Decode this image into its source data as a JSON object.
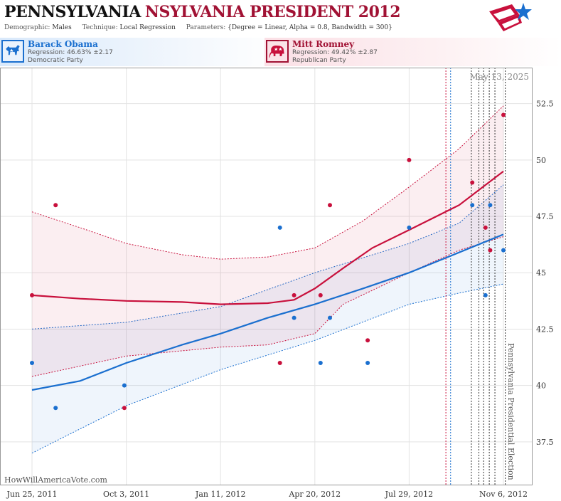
{
  "header": {
    "title_state": "PENNSYLVANIA",
    "title_office": "NSYLVANIA PRESIDENT 2012",
    "demographic_label": "Demographic:",
    "demographic_value": "Males",
    "technique_label": "Technique:",
    "technique_value": "Local Regression",
    "parameters_label": "Parameters:",
    "parameters_value": "{Degree = Linear, Alpha = 0.8, Bandwidth = 300}"
  },
  "candidates": {
    "dem": {
      "name": "Barack Obama",
      "regression": "Regression: 46.63% ±2.17",
      "party": "Democratic Party",
      "icon": "donkey-icon",
      "color": "#1a6fcf"
    },
    "rep": {
      "name": "Mitt Romney",
      "regression": "Regression: 49.42% ±2.87",
      "party": "Republican Party",
      "icon": "elephant-icon",
      "color": "#c8103c"
    }
  },
  "watermark": "HowWillAmericaVote.com",
  "date_stamp": "May 13, 2025",
  "election_label": "Pennsylvania Presidential Election",
  "chart_data": {
    "type": "scatter",
    "x_axis": {
      "type": "date",
      "range": [
        "2011-06-25",
        "2012-11-15"
      ],
      "tick_labels": [
        "Jun 25, 2011",
        "Oct 3, 2011",
        "Jan 11, 2012",
        "Apr 20, 2012",
        "Jul 29, 2012",
        "Nov 6, 2012"
      ],
      "ticks": [
        "2011-06-25",
        "2011-10-03",
        "2012-01-11",
        "2012-04-20",
        "2012-07-29",
        "2012-11-06"
      ]
    },
    "y_axis": {
      "range": [
        35.6,
        54.1
      ],
      "ticks": [
        37.5,
        40,
        42.5,
        45,
        47.5,
        50,
        52.5
      ],
      "tick_labels": [
        "37.5",
        "40",
        "42.5",
        "45",
        "47.5",
        "50",
        "52.5"
      ],
      "position": "right"
    },
    "grid": true,
    "series": [
      {
        "name": "Barack Obama",
        "color": "#1a6fcf",
        "points": [
          {
            "date": "2011-06-25",
            "value": 41
          },
          {
            "date": "2011-07-20",
            "value": 39
          },
          {
            "date": "2011-10-01",
            "value": 40
          },
          {
            "date": "2012-03-14",
            "value": 47
          },
          {
            "date": "2012-03-29",
            "value": 43
          },
          {
            "date": "2012-04-26",
            "value": 41
          },
          {
            "date": "2012-05-06",
            "value": 43
          },
          {
            "date": "2012-06-15",
            "value": 41
          },
          {
            "date": "2012-07-29",
            "value": 47
          },
          {
            "date": "2012-10-04",
            "value": 48
          },
          {
            "date": "2012-10-18",
            "value": 44
          },
          {
            "date": "2012-10-23",
            "value": 48
          },
          {
            "date": "2012-11-06",
            "value": 46
          }
        ],
        "regression": [
          {
            "date": "2011-06-25",
            "value": 39.8
          },
          {
            "date": "2011-08-15",
            "value": 40.2
          },
          {
            "date": "2011-10-03",
            "value": 41.0
          },
          {
            "date": "2011-12-01",
            "value": 41.8
          },
          {
            "date": "2012-01-11",
            "value": 42.3
          },
          {
            "date": "2012-03-01",
            "value": 43.0
          },
          {
            "date": "2012-04-20",
            "value": 43.6
          },
          {
            "date": "2012-06-10",
            "value": 44.3
          },
          {
            "date": "2012-07-29",
            "value": 45.0
          },
          {
            "date": "2012-09-20",
            "value": 45.9
          },
          {
            "date": "2012-11-06",
            "value": 46.7
          }
        ],
        "upper": [
          {
            "date": "2011-06-25",
            "value": 42.5
          },
          {
            "date": "2011-10-03",
            "value": 42.8
          },
          {
            "date": "2012-01-11",
            "value": 43.5
          },
          {
            "date": "2012-04-20",
            "value": 45.0
          },
          {
            "date": "2012-07-29",
            "value": 46.3
          },
          {
            "date": "2012-09-20",
            "value": 47.2
          },
          {
            "date": "2012-11-06",
            "value": 48.9
          }
        ],
        "lower": [
          {
            "date": "2011-06-25",
            "value": 37.0
          },
          {
            "date": "2011-10-03",
            "value": 39.1
          },
          {
            "date": "2012-01-11",
            "value": 40.7
          },
          {
            "date": "2012-04-20",
            "value": 42.0
          },
          {
            "date": "2012-07-29",
            "value": 43.6
          },
          {
            "date": "2012-09-20",
            "value": 44.1
          },
          {
            "date": "2012-11-06",
            "value": 44.5
          }
        ]
      },
      {
        "name": "Mitt Romney",
        "color": "#c8103c",
        "points": [
          {
            "date": "2011-06-25",
            "value": 44
          },
          {
            "date": "2011-07-20",
            "value": 48
          },
          {
            "date": "2011-10-01",
            "value": 39
          },
          {
            "date": "2012-03-14",
            "value": 41
          },
          {
            "date": "2012-03-29",
            "value": 44
          },
          {
            "date": "2012-04-26",
            "value": 44
          },
          {
            "date": "2012-05-06",
            "value": 48
          },
          {
            "date": "2012-06-15",
            "value": 42
          },
          {
            "date": "2012-07-29",
            "value": 50
          },
          {
            "date": "2012-10-04",
            "value": 49
          },
          {
            "date": "2012-10-18",
            "value": 47
          },
          {
            "date": "2012-10-23",
            "value": 46
          },
          {
            "date": "2012-11-06",
            "value": 52
          }
        ],
        "regression": [
          {
            "date": "2011-06-25",
            "value": 44.0
          },
          {
            "date": "2011-08-15",
            "value": 43.85
          },
          {
            "date": "2011-10-03",
            "value": 43.75
          },
          {
            "date": "2011-12-01",
            "value": 43.7
          },
          {
            "date": "2012-01-11",
            "value": 43.6
          },
          {
            "date": "2012-03-01",
            "value": 43.65
          },
          {
            "date": "2012-03-29",
            "value": 43.8
          },
          {
            "date": "2012-04-20",
            "value": 44.3
          },
          {
            "date": "2012-05-20",
            "value": 45.2
          },
          {
            "date": "2012-06-20",
            "value": 46.1
          },
          {
            "date": "2012-07-29",
            "value": 46.9
          },
          {
            "date": "2012-09-20",
            "value": 48.0
          },
          {
            "date": "2012-11-06",
            "value": 49.5
          }
        ],
        "upper": [
          {
            "date": "2011-06-25",
            "value": 47.7
          },
          {
            "date": "2011-08-15",
            "value": 47.0
          },
          {
            "date": "2011-10-03",
            "value": 46.3
          },
          {
            "date": "2011-12-01",
            "value": 45.8
          },
          {
            "date": "2012-01-11",
            "value": 45.6
          },
          {
            "date": "2012-03-01",
            "value": 45.7
          },
          {
            "date": "2012-04-20",
            "value": 46.1
          },
          {
            "date": "2012-06-10",
            "value": 47.3
          },
          {
            "date": "2012-07-29",
            "value": 48.8
          },
          {
            "date": "2012-09-20",
            "value": 50.5
          },
          {
            "date": "2012-11-06",
            "value": 52.4
          }
        ],
        "lower": [
          {
            "date": "2011-06-25",
            "value": 40.4
          },
          {
            "date": "2011-10-03",
            "value": 41.3
          },
          {
            "date": "2012-01-11",
            "value": 41.7
          },
          {
            "date": "2012-03-01",
            "value": 41.8
          },
          {
            "date": "2012-04-20",
            "value": 42.3
          },
          {
            "date": "2012-05-20",
            "value": 43.6
          },
          {
            "date": "2012-07-29",
            "value": 45.0
          },
          {
            "date": "2012-09-20",
            "value": 46.0
          },
          {
            "date": "2012-11-06",
            "value": 46.6
          }
        ]
      }
    ],
    "event_lines": [
      {
        "date": "2012-09-06",
        "color": "#c8103c"
      },
      {
        "date": "2012-09-11",
        "color": "#1a6fcf"
      },
      {
        "date": "2012-10-03",
        "color": "#333333"
      },
      {
        "date": "2012-10-11",
        "color": "#333333"
      },
      {
        "date": "2012-10-16",
        "color": "#333333"
      },
      {
        "date": "2012-10-22",
        "color": "#333333"
      },
      {
        "date": "2012-10-28",
        "color": "#333333"
      },
      {
        "date": "2012-11-08",
        "color": "#333333"
      }
    ]
  }
}
